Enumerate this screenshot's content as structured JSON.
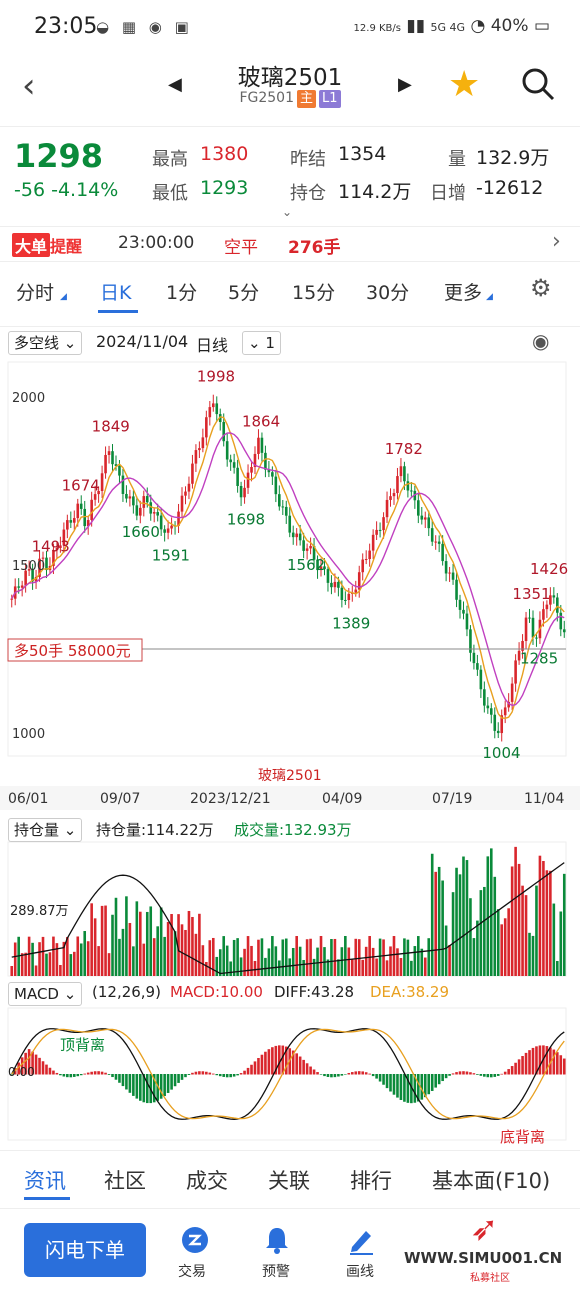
{
  "status": {
    "time": "23:05",
    "speed": "12.9 KB/s",
    "battery": "40%",
    "net": "5G 4G"
  },
  "header": {
    "title": "玻璃2501",
    "code": "FG2501",
    "tag_main": "主",
    "tag_l1": "L1"
  },
  "quote": {
    "price": "1298",
    "change": "-56",
    "change_pct": "-4.14%",
    "high_label": "最高",
    "high": "1380",
    "low_label": "最低",
    "low": "1293",
    "prev_label": "昨结",
    "prev": "1354",
    "oi_label": "持仓",
    "oi": "114.2万",
    "vol_label": "量",
    "vol": "132.9万",
    "daychg_label": "日增",
    "daychg": "-12612"
  },
  "alert": {
    "badge1": "大单",
    "badge2": "提醒",
    "time": "23:00:00",
    "action": "空平",
    "qty": "276手"
  },
  "tabs": [
    "分时",
    "日K",
    "1分",
    "5分",
    "15分",
    "30分",
    "更多"
  ],
  "kline": {
    "indicator": "多空线",
    "date": "2024/11/04",
    "period": "日线",
    "count": "1",
    "name_label": "玻璃2501",
    "position_label": "多50手  58000元",
    "x_ticks": [
      "06/01",
      "09/07",
      "2023/12/21",
      "04/09",
      "07/19",
      "11/04"
    ]
  },
  "chart_data": {
    "type": "candlestick",
    "ylim": [
      950,
      2080
    ],
    "y_ticks": [
      "2000",
      "1500",
      "1000"
    ],
    "annotations": [
      {
        "label": "1998",
        "value": 1998,
        "kind": "high"
      },
      {
        "label": "1849",
        "value": 1849,
        "kind": "high"
      },
      {
        "label": "1864",
        "value": 1864,
        "kind": "high"
      },
      {
        "label": "1674",
        "value": 1674,
        "kind": "high"
      },
      {
        "label": "1782",
        "value": 1782,
        "kind": "high"
      },
      {
        "label": "1493",
        "value": 1493,
        "kind": "high"
      },
      {
        "label": "1426",
        "value": 1426,
        "kind": "high"
      },
      {
        "label": "1351",
        "value": 1351,
        "kind": "high"
      },
      {
        "label": "1660",
        "value": 1660,
        "kind": "low"
      },
      {
        "label": "1591",
        "value": 1591,
        "kind": "low"
      },
      {
        "label": "1698",
        "value": 1698,
        "kind": "low"
      },
      {
        "label": "1562",
        "value": 1562,
        "kind": "low"
      },
      {
        "label": "1389",
        "value": 1389,
        "kind": "low"
      },
      {
        "label": "1004",
        "value": 1004,
        "kind": "low"
      },
      {
        "label": "1285",
        "value": 1285,
        "kind": "low"
      }
    ],
    "path_points": [
      1400,
      1440,
      1480,
      1460,
      1520,
      1493,
      1550,
      1600,
      1640,
      1674,
      1620,
      1700,
      1760,
      1849,
      1780,
      1720,
      1680,
      1660,
      1700,
      1650,
      1620,
      1591,
      1640,
      1700,
      1780,
      1850,
      1920,
      1998,
      1900,
      1820,
      1760,
      1698,
      1800,
      1864,
      1800,
      1740,
      1680,
      1620,
      1580,
      1562,
      1540,
      1500,
      1470,
      1440,
      1420,
      1389,
      1440,
      1500,
      1560,
      1600,
      1660,
      1720,
      1782,
      1740,
      1680,
      1640,
      1600,
      1560,
      1500,
      1450,
      1380,
      1300,
      1200,
      1120,
      1050,
      1004,
      1060,
      1150,
      1250,
      1351,
      1280,
      1340,
      1426,
      1360,
      1298
    ]
  },
  "volume": {
    "indicator": "持仓量",
    "oi_label": "持仓量:114.22万",
    "vol_label": "成交量:132.93万",
    "axis": "289.87万"
  },
  "macd": {
    "indicator": "MACD",
    "params": "(12,26,9)",
    "macd": "MACD:10.00",
    "diff": "DIFF:43.28",
    "dea": "DEA:38.29",
    "zero": "0.00",
    "top_div": "顶背离",
    "bottom_div": "底背离"
  },
  "bottom_tabs": [
    "资讯",
    "社区",
    "成交",
    "关联",
    "排行",
    "基本面(F10)"
  ],
  "actions": {
    "flash": "闪电下单",
    "trade": "交易",
    "alert": "预警",
    "draw": "画线",
    "watermark": "WWW.SIMU001.CN",
    "watermark_sub": "私募社区"
  },
  "colors": {
    "up": "#d9262c",
    "down": "#0a8a3a",
    "accent": "#2a6fdb"
  }
}
